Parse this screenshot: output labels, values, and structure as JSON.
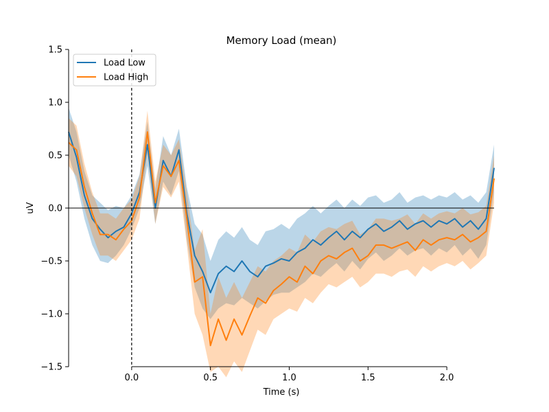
{
  "chart_data": {
    "type": "line",
    "title": "Memory Load (mean)",
    "xlabel": "Time (s)",
    "ylabel": "uV",
    "xlim": [
      -0.4,
      2.3
    ],
    "ylim": [
      -1.5,
      1.5
    ],
    "xticks": [
      0.0,
      0.5,
      1.0,
      1.5,
      2.0
    ],
    "xtick_labels": [
      "0.0",
      "0.5",
      "1.0",
      "1.5",
      "2.0"
    ],
    "yticks": [
      -1.5,
      -1.0,
      -0.5,
      0.0,
      0.5,
      1.0,
      1.5
    ],
    "ytick_labels": [
      "−1.5",
      "−1.0",
      "−0.5",
      "0.0",
      "0.5",
      "1.0",
      "1.5"
    ],
    "grid": false,
    "legend_position": "top-left",
    "zero_line": true,
    "event_line_x": 0.0,
    "x": [
      -0.4,
      -0.35,
      -0.3,
      -0.25,
      -0.2,
      -0.15,
      -0.1,
      -0.05,
      0.0,
      0.05,
      0.1,
      0.15,
      0.2,
      0.25,
      0.3,
      0.35,
      0.4,
      0.45,
      0.5,
      0.55,
      0.6,
      0.65,
      0.7,
      0.75,
      0.8,
      0.85,
      0.9,
      0.95,
      1.0,
      1.05,
      1.1,
      1.15,
      1.2,
      1.25,
      1.3,
      1.35,
      1.4,
      1.45,
      1.5,
      1.55,
      1.6,
      1.65,
      1.7,
      1.75,
      1.8,
      1.85,
      1.9,
      1.95,
      2.0,
      2.05,
      2.1,
      2.15,
      2.2,
      2.25,
      2.3
    ],
    "series": [
      {
        "name": "Load Low",
        "color": "#1f77b4",
        "values": [
          0.72,
          0.48,
          0.12,
          -0.1,
          -0.2,
          -0.28,
          -0.22,
          -0.18,
          -0.05,
          0.15,
          0.6,
          0.0,
          0.45,
          0.3,
          0.55,
          -0.05,
          -0.45,
          -0.6,
          -0.8,
          -0.62,
          -0.55,
          -0.6,
          -0.5,
          -0.6,
          -0.65,
          -0.55,
          -0.52,
          -0.48,
          -0.5,
          -0.42,
          -0.38,
          -0.3,
          -0.35,
          -0.28,
          -0.22,
          -0.3,
          -0.22,
          -0.28,
          -0.2,
          -0.15,
          -0.22,
          -0.18,
          -0.12,
          -0.2,
          -0.15,
          -0.12,
          -0.18,
          -0.12,
          -0.15,
          -0.1,
          -0.18,
          -0.12,
          -0.2,
          -0.1,
          0.38
        ],
        "lower": [
          0.5,
          0.25,
          -0.1,
          -0.35,
          -0.5,
          -0.52,
          -0.45,
          -0.35,
          -0.2,
          0.0,
          0.4,
          -0.15,
          0.25,
          0.12,
          0.35,
          -0.3,
          -0.75,
          -0.95,
          -1.05,
          -0.95,
          -0.9,
          -0.92,
          -0.85,
          -0.9,
          -0.95,
          -0.88,
          -0.82,
          -0.8,
          -0.8,
          -0.75,
          -0.7,
          -0.62,
          -0.65,
          -0.58,
          -0.52,
          -0.6,
          -0.5,
          -0.58,
          -0.48,
          -0.42,
          -0.5,
          -0.45,
          -0.38,
          -0.45,
          -0.4,
          -0.38,
          -0.45,
          -0.38,
          -0.42,
          -0.35,
          -0.45,
          -0.38,
          -0.48,
          -0.35,
          0.15
        ],
        "upper": [
          0.95,
          0.72,
          0.35,
          0.12,
          0.05,
          -0.02,
          0.02,
          0.0,
          0.12,
          0.32,
          0.82,
          0.18,
          0.68,
          0.5,
          0.75,
          0.2,
          -0.15,
          -0.25,
          -0.5,
          -0.3,
          -0.22,
          -0.28,
          -0.18,
          -0.3,
          -0.35,
          -0.22,
          -0.2,
          -0.15,
          -0.2,
          -0.1,
          -0.05,
          0.02,
          -0.05,
          0.02,
          0.08,
          0.0,
          0.08,
          0.02,
          0.1,
          0.12,
          0.05,
          0.08,
          0.15,
          0.05,
          0.1,
          0.12,
          0.08,
          0.12,
          0.1,
          0.15,
          0.08,
          0.12,
          0.05,
          0.15,
          0.6
        ]
      },
      {
        "name": "Load High",
        "color": "#ff7f0e",
        "values": [
          0.62,
          0.55,
          0.2,
          -0.05,
          -0.25,
          -0.25,
          -0.3,
          -0.2,
          -0.12,
          0.1,
          0.72,
          0.05,
          0.4,
          0.3,
          0.45,
          -0.1,
          -0.7,
          -0.65,
          -1.3,
          -1.05,
          -1.25,
          -1.05,
          -1.2,
          -1.02,
          -0.85,
          -0.9,
          -0.78,
          -0.72,
          -0.65,
          -0.7,
          -0.55,
          -0.62,
          -0.5,
          -0.45,
          -0.48,
          -0.42,
          -0.38,
          -0.5,
          -0.45,
          -0.35,
          -0.35,
          -0.38,
          -0.35,
          -0.32,
          -0.4,
          -0.3,
          -0.35,
          -0.3,
          -0.28,
          -0.3,
          -0.25,
          -0.32,
          -0.28,
          -0.22,
          0.28
        ],
        "lower": [
          0.4,
          0.3,
          0.0,
          -0.25,
          -0.45,
          -0.45,
          -0.5,
          -0.4,
          -0.3,
          -0.1,
          0.52,
          -0.15,
          0.2,
          0.1,
          0.25,
          -0.35,
          -1.0,
          -1.2,
          -1.55,
          -1.5,
          -1.6,
          -1.45,
          -1.55,
          -1.35,
          -1.15,
          -1.2,
          -1.05,
          -1.0,
          -0.95,
          -0.98,
          -0.85,
          -0.9,
          -0.8,
          -0.72,
          -0.75,
          -0.7,
          -0.65,
          -0.75,
          -0.7,
          -0.62,
          -0.62,
          -0.65,
          -0.6,
          -0.58,
          -0.65,
          -0.55,
          -0.6,
          -0.55,
          -0.52,
          -0.55,
          -0.5,
          -0.58,
          -0.52,
          -0.45,
          0.05
        ],
        "upper": [
          0.85,
          0.78,
          0.42,
          0.15,
          -0.05,
          -0.05,
          -0.1,
          0.0,
          0.08,
          0.3,
          0.92,
          0.25,
          0.6,
          0.5,
          0.65,
          0.15,
          -0.4,
          -0.2,
          -1.0,
          -0.65,
          -0.85,
          -0.7,
          -0.85,
          -0.7,
          -0.55,
          -0.6,
          -0.5,
          -0.45,
          -0.38,
          -0.42,
          -0.25,
          -0.32,
          -0.22,
          -0.18,
          -0.2,
          -0.15,
          -0.12,
          -0.25,
          -0.2,
          -0.1,
          -0.1,
          -0.12,
          -0.1,
          -0.06,
          -0.15,
          -0.05,
          -0.1,
          -0.05,
          -0.03,
          -0.05,
          0.0,
          -0.06,
          -0.04,
          0.02,
          0.5
        ]
      }
    ]
  }
}
